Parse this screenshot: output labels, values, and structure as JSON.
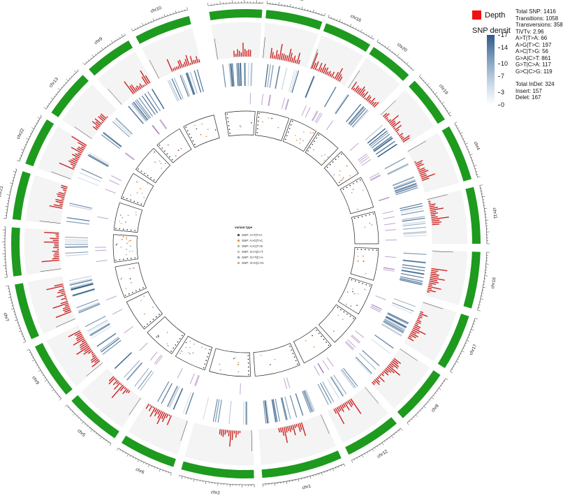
{
  "chart_data": {
    "type": "circos",
    "chromosomes": [
      "chr1",
      "chr2",
      "chr3",
      "chr4",
      "chr5",
      "chr6",
      "chr7",
      "chr8",
      "chr9",
      "chr10",
      "chr11",
      "chr12",
      "chr13",
      "chr14",
      "chr15",
      "chr16",
      "chr17",
      "chr18",
      "chr19",
      "chr20",
      "chr21",
      "chr22"
    ],
    "tracks": [
      "ideogram",
      "Depth",
      "SNP density",
      "InDel",
      "variant type"
    ],
    "legend": {
      "depth_label": "Depth",
      "density_title": "SNP densit",
      "density_ticks": [
        17,
        14,
        10,
        7,
        3,
        0
      ]
    },
    "center_legend": {
      "title": "variant type",
      "entries": [
        "SNP: A>T|T>A",
        "SNP: A>G|T>C",
        "SNP: A>C|T>G",
        "SNP: G>A|C>T",
        "SNP: G>T|C>A",
        "SNP: G>C|C>G"
      ],
      "colors": [
        "#555555",
        "#e8944a",
        "#9ec49e",
        "#c0c0c0",
        "#86a9c9",
        "#c9b37a"
      ]
    },
    "stats": [
      "Total SNP: 1416",
      "Transitions: 1058",
      "Transversions: 358",
      "TiVTv: 2.96",
      "A>T|T>A: 66",
      "A>G|T>C: 197",
      "A>C|T>G: 56",
      "G>A|C>T: 861",
      "G>T|C>A: 117",
      "G>C|C>G: 119",
      "",
      "Total InDel: 324",
      "Insert: 157",
      "Delet: 167"
    ],
    "colors": {
      "ideogram": "#1e9a1e",
      "depth": "#cc2222",
      "density_high": "#2e5a85",
      "indel": "#8a5aa8",
      "track_bg": "#f4f4f4"
    }
  }
}
